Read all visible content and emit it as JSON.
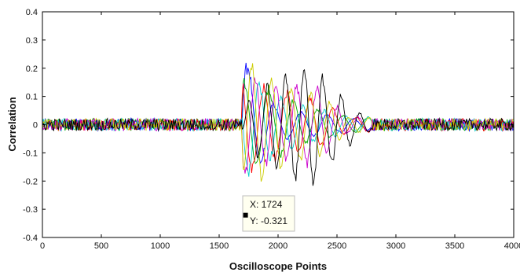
{
  "chart_data": {
    "type": "line",
    "title": "",
    "xlabel": "Oscilloscope Points",
    "ylabel": "Correlation",
    "xlim": [
      0,
      4000
    ],
    "ylim": [
      -0.4,
      0.4
    ],
    "xticks": [
      0,
      500,
      1000,
      1500,
      2000,
      2500,
      3000,
      3500,
      4000
    ],
    "yticks": [
      -0.4,
      -0.3,
      -0.2,
      -0.1,
      0,
      0.1,
      0.2,
      0.3,
      0.4
    ],
    "ytick_labels": [
      "-0.4",
      "-0.3",
      "-0.2",
      "-0.1",
      "0",
      "0.1",
      "0.2",
      "0.3",
      "0.4"
    ],
    "grid": false,
    "noise_level": 0.022,
    "series": [
      {
        "color": "#0000ff",
        "envelope": [
          [
            0,
            0.02
          ],
          [
            1690,
            0.02
          ],
          [
            1700,
            0.28
          ],
          [
            1800,
            0.18
          ],
          [
            2000,
            0.06
          ],
          [
            2400,
            0.04
          ],
          [
            2700,
            0.02
          ],
          [
            4000,
            0.02
          ]
        ]
      },
      {
        "color": "#00aa00",
        "envelope": [
          [
            0,
            0.02
          ],
          [
            1690,
            0.02
          ],
          [
            1700,
            0.18
          ],
          [
            1900,
            0.15
          ],
          [
            2200,
            0.08
          ],
          [
            2600,
            0.03
          ],
          [
            4000,
            0.02
          ]
        ]
      },
      {
        "color": "#ff0000",
        "envelope": [
          [
            0,
            0.02
          ],
          [
            1690,
            0.02
          ],
          [
            1700,
            0.2
          ],
          [
            1900,
            0.15
          ],
          [
            2300,
            0.1
          ],
          [
            2600,
            0.03
          ],
          [
            4000,
            0.02
          ]
        ]
      },
      {
        "color": "#00cccc",
        "envelope": [
          [
            0,
            0.02
          ],
          [
            1690,
            0.02
          ],
          [
            1700,
            0.22
          ],
          [
            1900,
            0.14
          ],
          [
            2200,
            0.08
          ],
          [
            2600,
            0.03
          ],
          [
            4000,
            0.02
          ]
        ]
      },
      {
        "color": "#cc00cc",
        "envelope": [
          [
            0,
            0.02
          ],
          [
            1690,
            0.02
          ],
          [
            1700,
            0.2
          ],
          [
            2000,
            0.14
          ],
          [
            2300,
            0.16
          ],
          [
            2600,
            0.03
          ],
          [
            4000,
            0.02
          ]
        ]
      },
      {
        "color": "#cccc00",
        "envelope": [
          [
            0,
            0.02
          ],
          [
            1690,
            0.02
          ],
          [
            1710,
            0.25
          ],
          [
            2100,
            0.15
          ],
          [
            2350,
            0.12
          ],
          [
            2600,
            0.03
          ],
          [
            4000,
            0.02
          ]
        ]
      },
      {
        "color": "#000000",
        "envelope": [
          [
            0,
            0.02
          ],
          [
            1690,
            0.02
          ],
          [
            1750,
            0.1
          ],
          [
            2000,
            0.18
          ],
          [
            2250,
            0.24
          ],
          [
            2450,
            0.16
          ],
          [
            2650,
            0.06
          ],
          [
            2800,
            0.02
          ],
          [
            4000,
            0.02
          ]
        ]
      }
    ],
    "datatip": {
      "x": 1724,
      "y": -0.321,
      "x_text": "X: 1724",
      "y_text": "Y: -0.321"
    }
  }
}
